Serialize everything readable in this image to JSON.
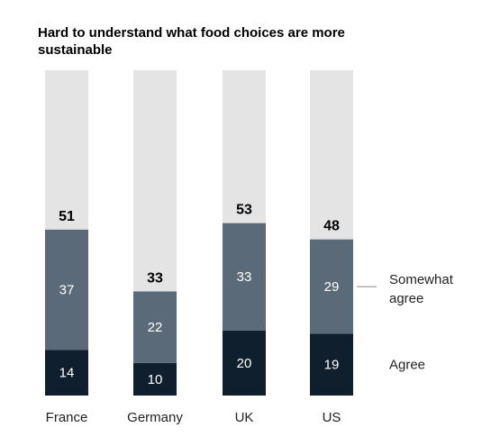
{
  "chart_data": {
    "type": "bar",
    "stacked": true,
    "title": "Hard to understand what food choices are more sustainable",
    "categories": [
      "France",
      "Germany",
      "UK",
      "US"
    ],
    "series": [
      {
        "name": "Agree",
        "values": [
          14,
          10,
          20,
          19
        ],
        "color": "#0f1f2d"
      },
      {
        "name": "Somewhat agree",
        "values": [
          37,
          22,
          33,
          29
        ],
        "color": "#5b6a78"
      }
    ],
    "totals": [
      51,
      33,
      53,
      48
    ],
    "background_color": "#e4e4e4",
    "ylim": [
      0,
      100
    ],
    "legend_position": "right",
    "grid": false
  }
}
